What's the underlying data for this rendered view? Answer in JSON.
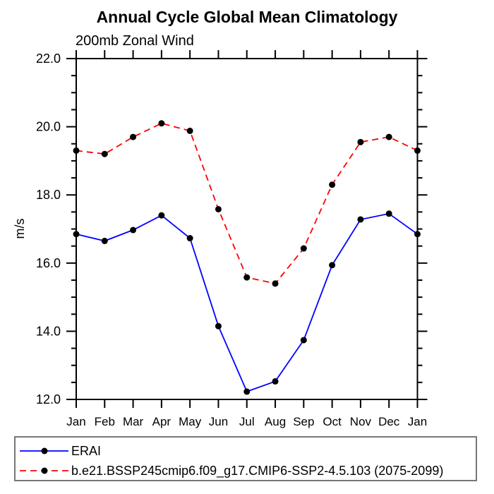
{
  "page": {
    "background": "#ffffff"
  },
  "colors": {
    "axis": "#000000",
    "text": "#000000",
    "legend_border": "#777777",
    "erai_line": "#0000ff",
    "model_line": "#ff0000",
    "marker": "#000000"
  },
  "chart_data": {
    "type": "line",
    "title": "Annual Cycle Global Mean Climatology",
    "subtitle": "200mb Zonal Wind",
    "xlabel": "",
    "ylabel": "m/s",
    "categories": [
      "Jan",
      "Feb",
      "Mar",
      "Apr",
      "May",
      "Jun",
      "Jul",
      "Aug",
      "Sep",
      "Oct",
      "Nov",
      "Dec",
      "Jan"
    ],
    "ylim": [
      12.0,
      22.0
    ],
    "y_major_tick_interval": 2.0,
    "y_minor_tick_interval": 0.5,
    "y_tick_labels": [
      "12.0",
      "14.0",
      "16.0",
      "18.0",
      "20.0",
      "22.0"
    ],
    "grid": false,
    "legend_position": "bottom-box",
    "series": [
      {
        "name": "ERAI",
        "color": "#0000ff",
        "line_style": "solid",
        "marker": "filled-circle",
        "marker_color": "#000000",
        "values": [
          16.85,
          16.65,
          16.97,
          17.4,
          16.73,
          14.15,
          12.23,
          12.53,
          13.74,
          15.94,
          17.28,
          17.45,
          16.85
        ]
      },
      {
        "name": "b.e21.BSSP245cmip6.f09_g17.CMIP6-SSP2-4.5.103 (2075-2099)",
        "color": "#ff0000",
        "line_style": "dashed",
        "marker": "filled-circle",
        "marker_color": "#000000",
        "values": [
          19.3,
          19.2,
          19.7,
          20.1,
          19.88,
          17.58,
          15.58,
          15.4,
          16.43,
          18.3,
          19.55,
          19.7,
          19.3
        ]
      }
    ]
  }
}
